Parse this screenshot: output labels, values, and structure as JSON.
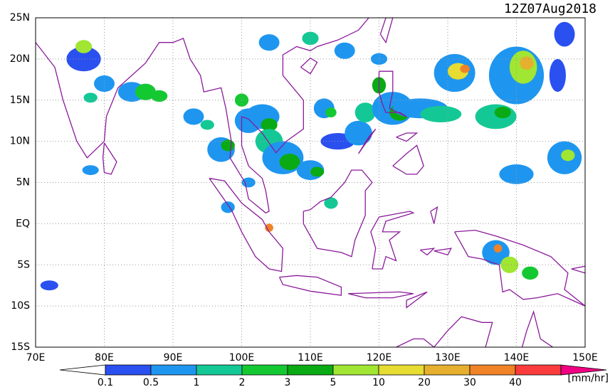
{
  "map": {
    "title": "12Z07Aug2018",
    "lat_labels": [
      "25N",
      "20N",
      "15N",
      "10N",
      "5N",
      "EQ",
      "5S",
      "10S",
      "15S"
    ],
    "lon_labels": [
      "70E",
      "80E",
      "90E",
      "100E",
      "110E",
      "120E",
      "130E",
      "140E",
      "150E"
    ],
    "colorbar": {
      "labels": [
        "0.1",
        "0.5",
        "1",
        "2",
        "3",
        "5",
        "10",
        "20",
        "30",
        "40"
      ],
      "colors": [
        "#ffffff",
        "#2a50f0",
        "#1e96f0",
        "#14c896",
        "#14c832",
        "#0aaa14",
        "#a0e632",
        "#e6dc32",
        "#e6af2d",
        "#f08228",
        "#fa3c3c",
        "#f00082"
      ],
      "unit": "[mm/hr]"
    }
  }
}
